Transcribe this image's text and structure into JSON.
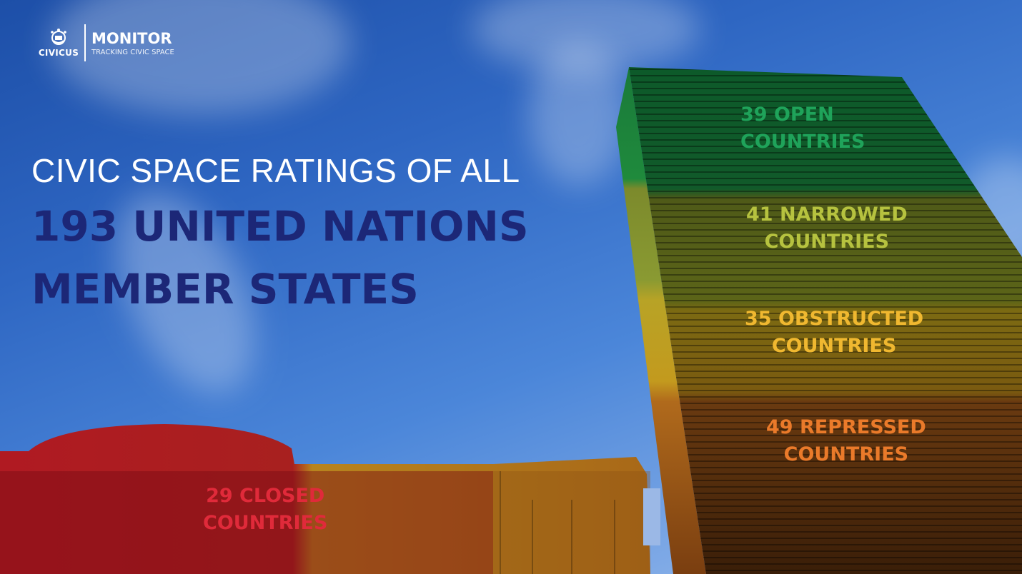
{
  "logo": {
    "brand": "CIVICUS",
    "product": "MONITOR",
    "tagline": "TRACKING CIVIC SPACE"
  },
  "headline": {
    "line1": "CIVIC SPACE RATINGS OF ALL",
    "line2": "193 UNITED NATIONS",
    "line3": "MEMBER STATES"
  },
  "ratings": [
    {
      "line1": "39 OPEN",
      "line2": "COUNTRIES",
      "count": 39,
      "category": "open",
      "color": "#1fa35a"
    },
    {
      "line1": "41 NARROWED",
      "line2": "COUNTRIES",
      "count": 41,
      "category": "narrowed",
      "color": "#b6c23f"
    },
    {
      "line1": "35 OBSTRUCTED",
      "line2": "COUNTRIES",
      "count": 35,
      "category": "obstructed",
      "color": "#f0b830"
    },
    {
      "line1": "49 REPRESSED",
      "line2": "COUNTRIES",
      "count": 49,
      "category": "repressed",
      "color": "#ea7a2a"
    },
    {
      "line1": "29 CLOSED",
      "line2": "COUNTRIES",
      "count": 29,
      "category": "closed",
      "color": "#e02a3a"
    }
  ]
}
